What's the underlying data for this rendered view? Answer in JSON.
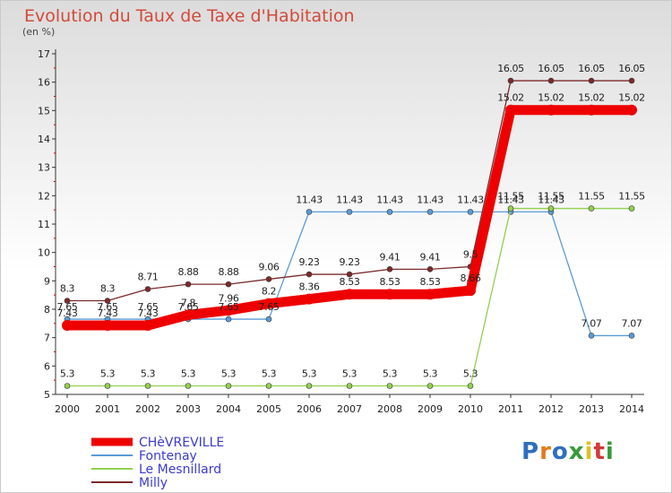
{
  "chart_data": {
    "type": "line",
    "title": "Evolution du Taux de Taxe d'Habitation",
    "subtitle": "(en %)",
    "xlabel": "",
    "ylabel": "",
    "categories": [
      "2000",
      "2001",
      "2002",
      "2003",
      "2004",
      "2005",
      "2006",
      "2007",
      "2008",
      "2009",
      "2010",
      "2011",
      "2012",
      "2013",
      "2014"
    ],
    "ylim": [
      5,
      17
    ],
    "yticks": [
      5,
      6,
      7,
      8,
      9,
      10,
      11,
      12,
      13,
      14,
      15,
      16,
      17
    ],
    "grid": false,
    "legend_position": "bottom-left",
    "series": [
      {
        "name": "CHèVREVILLE",
        "color": "#ee0000",
        "values": [
          7.43,
          7.43,
          7.43,
          7.8,
          7.96,
          8.2,
          8.36,
          8.53,
          8.53,
          8.53,
          8.66,
          15.02,
          15.02,
          15.02,
          15.02
        ]
      },
      {
        "name": "Fontenay",
        "color": "#5b9bd5",
        "values": [
          7.65,
          7.65,
          7.65,
          7.65,
          7.65,
          7.65,
          11.43,
          11.43,
          11.43,
          11.43,
          11.43,
          11.43,
          11.43,
          7.07,
          7.07
        ]
      },
      {
        "name": "Le Mesnillard",
        "color": "#92d050",
        "values": [
          5.3,
          5.3,
          5.3,
          5.3,
          5.3,
          5.3,
          5.3,
          5.3,
          5.3,
          5.3,
          5.3,
          11.55,
          11.55,
          11.55,
          11.55
        ]
      },
      {
        "name": "Milly",
        "color": "#7b2a2a",
        "values": [
          8.3,
          8.3,
          8.71,
          8.88,
          8.88,
          9.06,
          9.23,
          9.23,
          9.41,
          9.41,
          9.5,
          16.05,
          16.05,
          16.05,
          16.05
        ]
      }
    ]
  },
  "logo": {
    "text": "Proxiti"
  }
}
